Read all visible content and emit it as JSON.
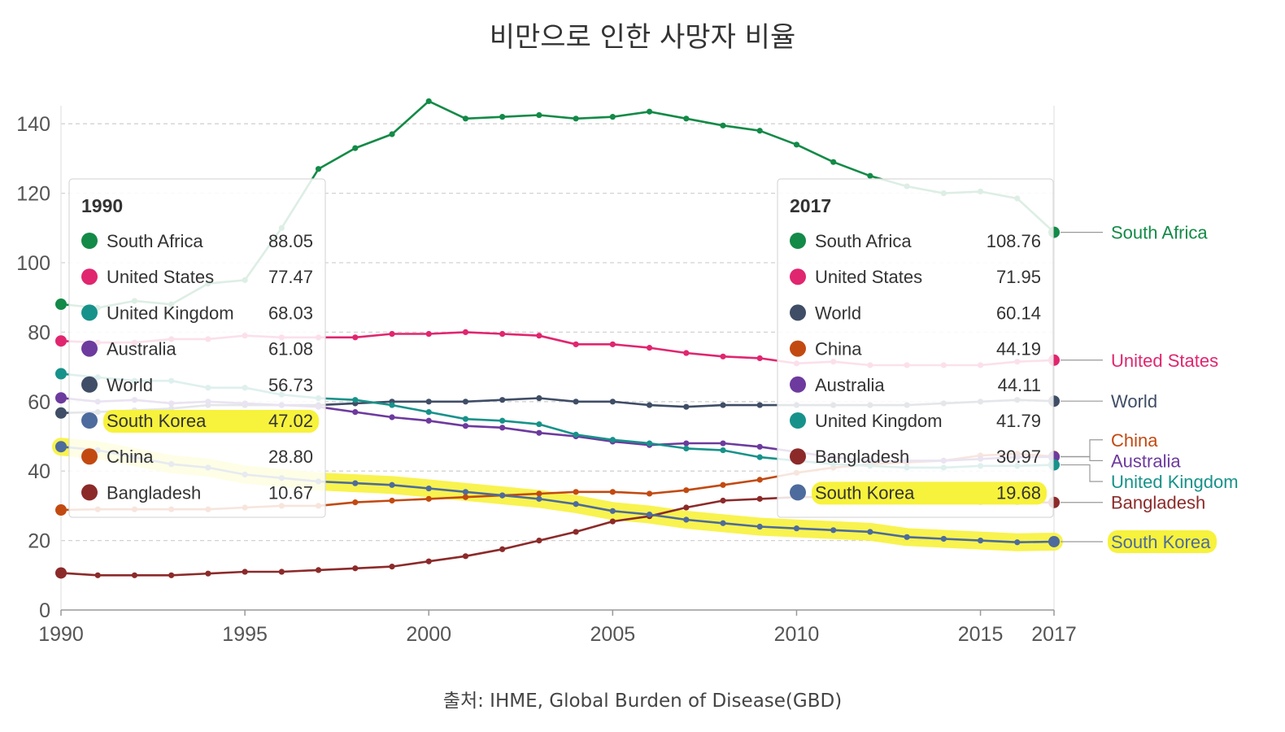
{
  "chart_data": {
    "type": "line",
    "title": "비만으로 인한 사망자 비율",
    "source": "출처: IHME, Global Burden of Disease(GBD)",
    "xlabel": "",
    "ylabel": "",
    "xlim": [
      1990,
      2017
    ],
    "ylim": [
      0,
      145
    ],
    "x_ticks": [
      1990,
      1995,
      2000,
      2005,
      2010,
      2015,
      2017
    ],
    "y_ticks": [
      0,
      20,
      40,
      60,
      80,
      100,
      120,
      140
    ],
    "grid": "horizontal dashed",
    "x": [
      1990,
      1991,
      1992,
      1993,
      1994,
      1995,
      1996,
      1997,
      1998,
      1999,
      2000,
      2001,
      2002,
      2003,
      2004,
      2005,
      2006,
      2007,
      2008,
      2009,
      2010,
      2011,
      2012,
      2013,
      2014,
      2015,
      2016,
      2017
    ],
    "highlighted_series": "South Korea",
    "series": [
      {
        "name": "South Africa",
        "color": "#138a47",
        "values": [
          88.05,
          87,
          89,
          88,
          94,
          95,
          110,
          127,
          133,
          137,
          146.5,
          141.5,
          142,
          142.5,
          141.5,
          142,
          143.5,
          141.5,
          139.5,
          138,
          134,
          129,
          125,
          122,
          120,
          120.5,
          118.5,
          108.76
        ]
      },
      {
        "name": "United States",
        "color": "#e0266f",
        "values": [
          77.47,
          77,
          77,
          78,
          78,
          79,
          78.5,
          78.5,
          78.5,
          79.5,
          79.5,
          80,
          79.5,
          79,
          76.5,
          76.5,
          75.5,
          74,
          73,
          72.5,
          71,
          71.5,
          70.5,
          70.5,
          70.5,
          70.5,
          71.5,
          71.95
        ]
      },
      {
        "name": "World",
        "color": "#3f4d66",
        "values": [
          56.73,
          57,
          57.5,
          58,
          59,
          59,
          59,
          59,
          59.5,
          60,
          60,
          60,
          60.5,
          61,
          60,
          60,
          59,
          58.5,
          59,
          59,
          59,
          59,
          59,
          59,
          59.5,
          60,
          60.5,
          60.14
        ]
      },
      {
        "name": "China",
        "color": "#c24a11",
        "values": [
          28.8,
          29,
          29,
          29,
          29,
          29.5,
          30,
          30,
          31,
          31.5,
          32,
          32.5,
          33,
          33.5,
          34,
          34,
          33.5,
          34.5,
          36,
          37.5,
          39.5,
          41,
          42,
          42.5,
          43,
          44.5,
          45,
          44.19
        ]
      },
      {
        "name": "Australia",
        "color": "#6d3a9e",
        "values": [
          61.08,
          60,
          60.5,
          59.5,
          60,
          59.5,
          59,
          58.5,
          57,
          55.5,
          54.5,
          53,
          52.5,
          51,
          50,
          48.5,
          47.5,
          48,
          48,
          47,
          45.5,
          44,
          43,
          43,
          43,
          43.5,
          44,
          44.11
        ]
      },
      {
        "name": "United Kingdom",
        "color": "#17928a",
        "values": [
          68.03,
          67,
          66,
          66,
          64,
          64,
          62,
          61,
          60.5,
          59,
          57,
          55,
          54.5,
          53.5,
          50.5,
          49,
          48,
          46.5,
          46,
          44,
          43,
          42,
          41.5,
          41,
          41,
          41.5,
          41.5,
          41.79
        ]
      },
      {
        "name": "Bangladesh",
        "color": "#8c2a2a",
        "values": [
          10.67,
          10,
          10,
          10,
          10.5,
          11,
          11,
          11.5,
          12,
          12.5,
          14,
          15.5,
          17.5,
          20,
          22.5,
          25.5,
          27,
          29.5,
          31.5,
          32,
          32.5,
          32.5,
          32,
          31.5,
          31.5,
          31,
          31,
          30.97
        ]
      },
      {
        "name": "South Korea",
        "color": "#4d6b9c",
        "values": [
          47.02,
          46,
          44,
          42,
          41,
          39,
          38,
          37,
          36.5,
          36,
          35,
          34,
          33,
          32,
          30.5,
          28.5,
          27.5,
          26,
          25,
          24,
          23.5,
          23,
          22.5,
          21,
          20.5,
          20,
          19.5,
          19.68
        ]
      }
    ],
    "end_labels": [
      {
        "series": "South Africa",
        "text": "South Africa"
      },
      {
        "series": "United States",
        "text": "United States"
      },
      {
        "series": "World",
        "text": "World"
      },
      {
        "series": "China",
        "text": "China"
      },
      {
        "series": "Australia",
        "text": "Australia"
      },
      {
        "series": "United Kingdom",
        "text": "United Kingdom"
      },
      {
        "series": "Bangladesh",
        "text": "Bangladesh"
      },
      {
        "series": "South Korea",
        "text": "South Korea"
      }
    ],
    "tooltips": [
      {
        "year": "1990",
        "rows": [
          {
            "name": "South Africa",
            "value": "88.05"
          },
          {
            "name": "United States",
            "value": "77.47"
          },
          {
            "name": "United Kingdom",
            "value": "68.03"
          },
          {
            "name": "Australia",
            "value": "61.08"
          },
          {
            "name": "World",
            "value": "56.73"
          },
          {
            "name": "South Korea",
            "value": "47.02"
          },
          {
            "name": "China",
            "value": "28.80"
          },
          {
            "name": "Bangladesh",
            "value": "10.67"
          }
        ]
      },
      {
        "year": "2017",
        "rows": [
          {
            "name": "South Africa",
            "value": "108.76"
          },
          {
            "name": "United States",
            "value": "71.95"
          },
          {
            "name": "World",
            "value": "60.14"
          },
          {
            "name": "China",
            "value": "44.19"
          },
          {
            "name": "Australia",
            "value": "44.11"
          },
          {
            "name": "United Kingdom",
            "value": "41.79"
          },
          {
            "name": "Bangladesh",
            "value": "30.97"
          },
          {
            "name": "South Korea",
            "value": "19.68"
          }
        ]
      }
    ],
    "highlight_color": "#f7f23c"
  }
}
